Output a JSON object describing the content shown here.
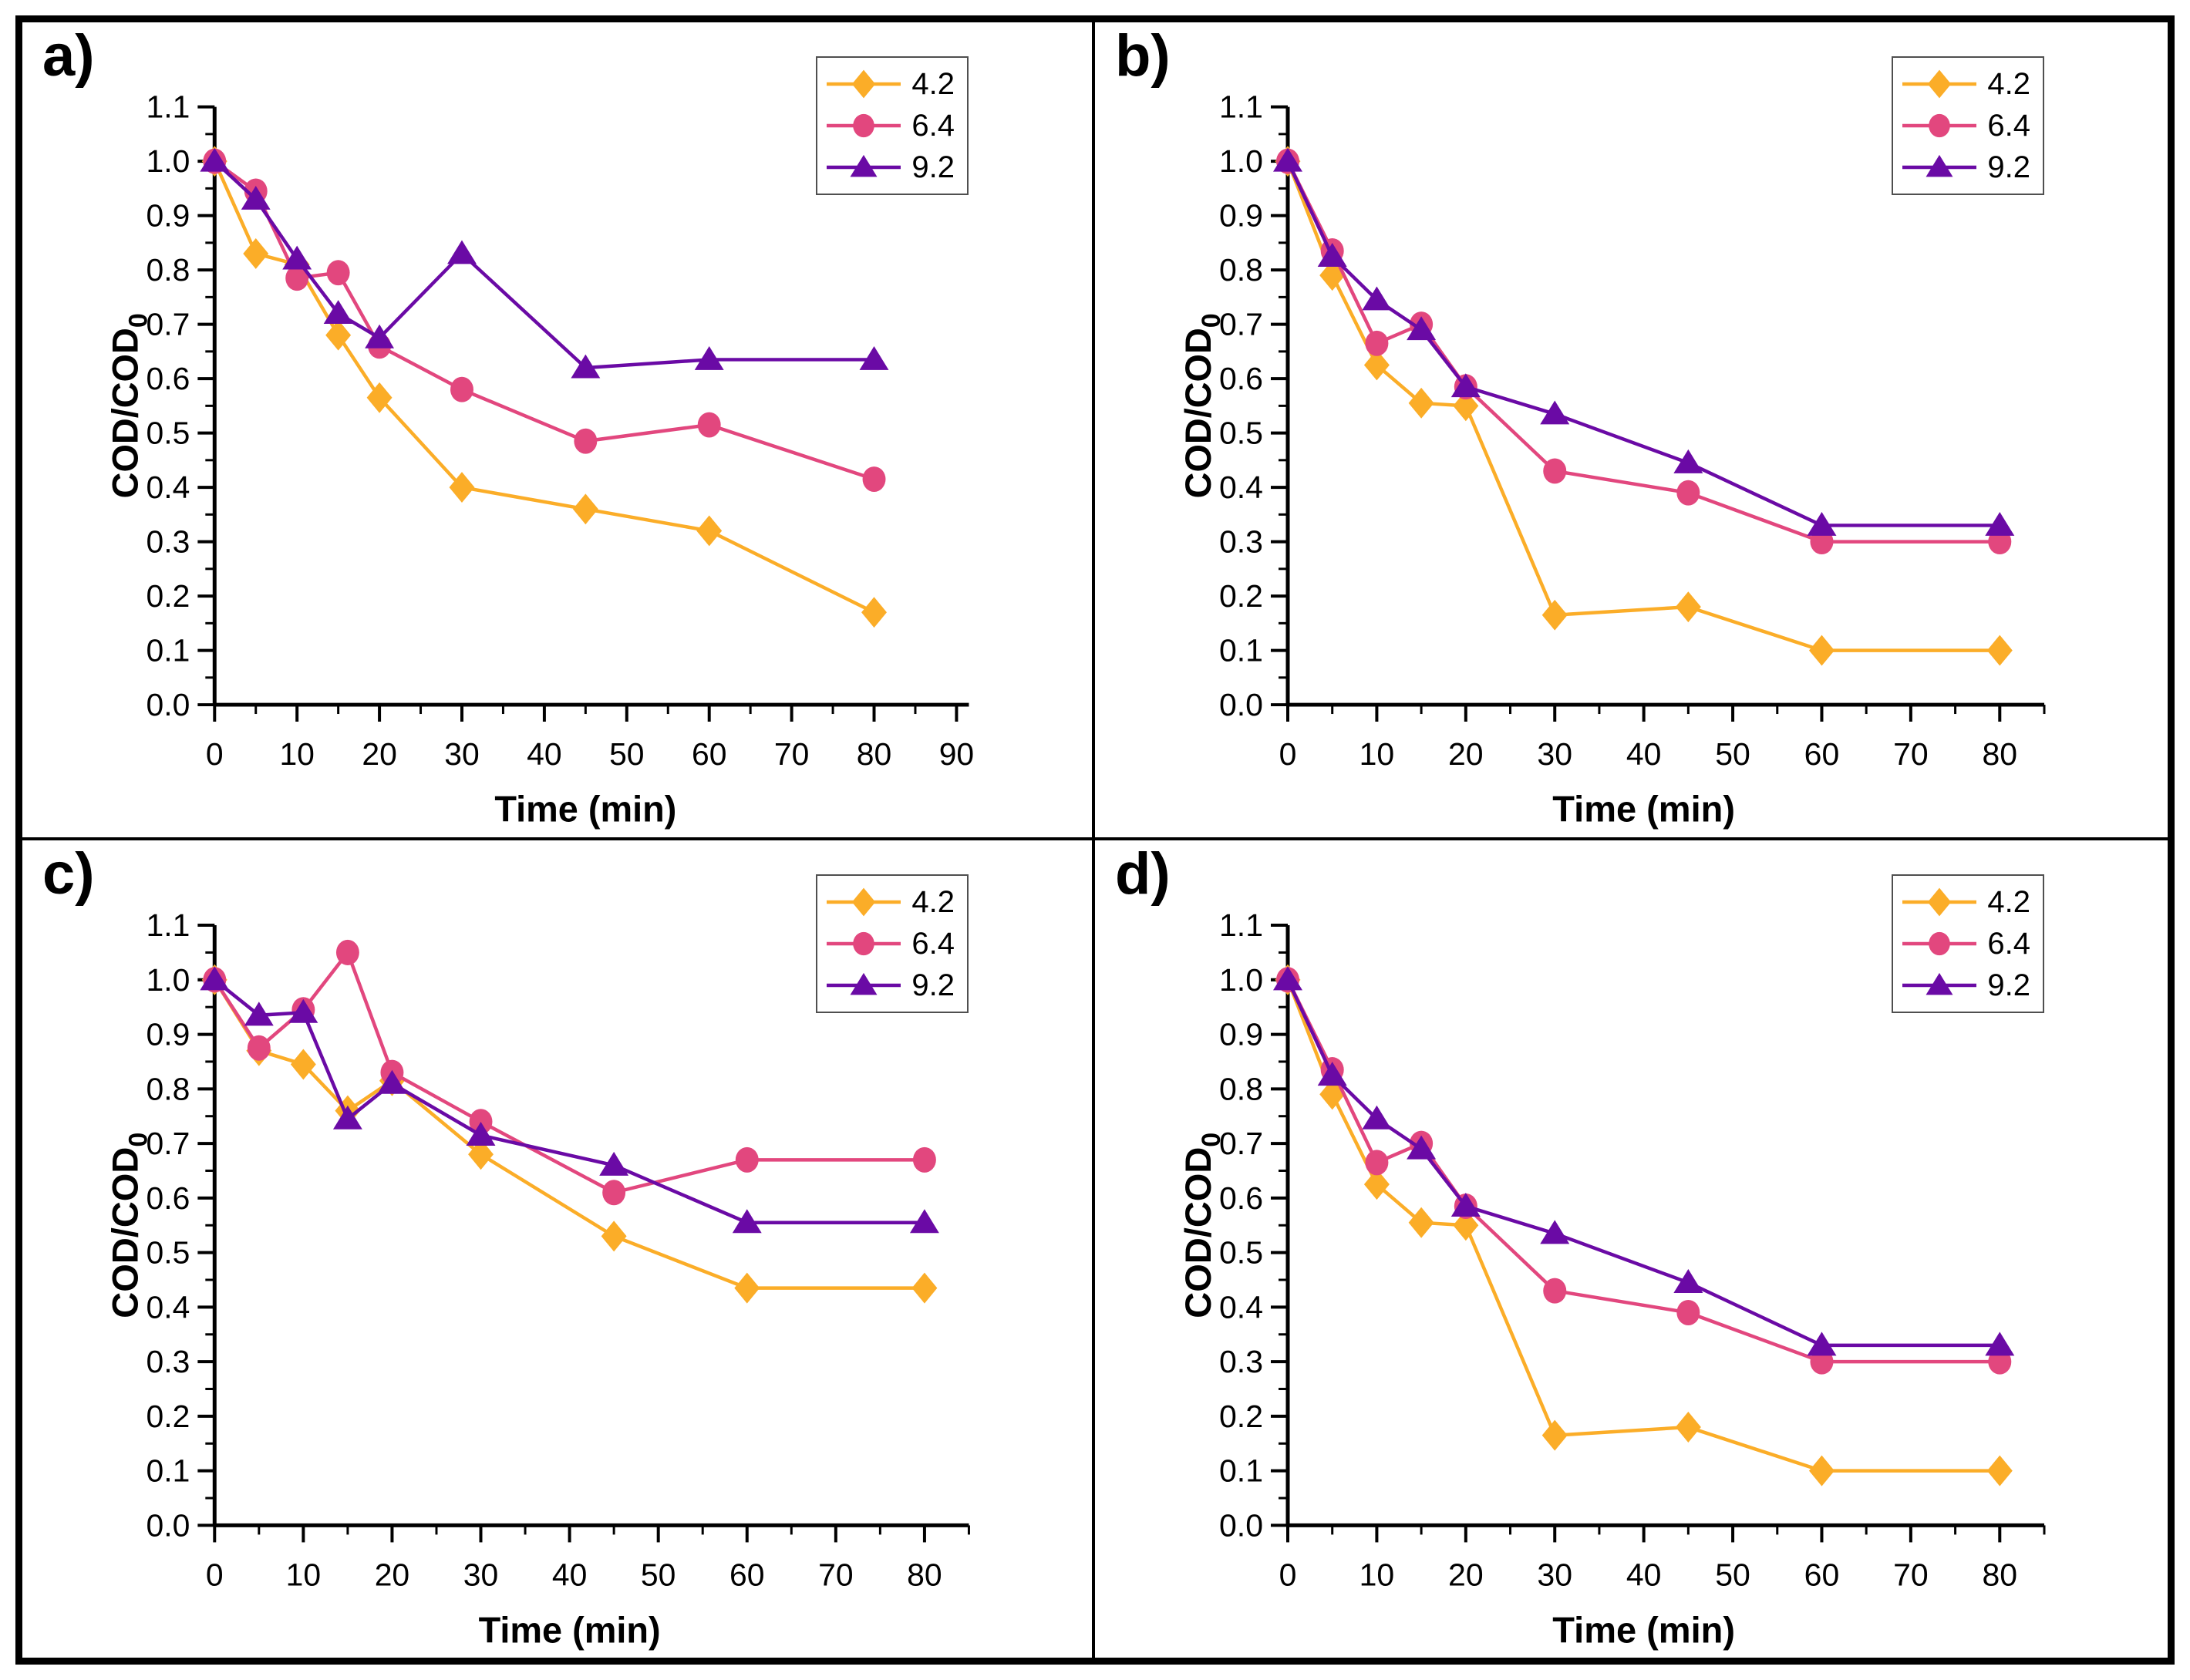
{
  "figure": {
    "background": "#ffffff",
    "border_color": "#000000",
    "axis_color": "#000000",
    "legend_border_color": "#4f4f4f"
  },
  "chart_data": [
    {
      "panel_label": "a)",
      "type": "line",
      "title": "",
      "xlabel": "Time (min)",
      "ylabel": "COD/COD",
      "ylabel_subscript": "0",
      "legend_position": "top-right",
      "grid": false,
      "x": [
        0,
        5,
        10,
        15,
        20,
        30,
        45,
        60,
        80
      ],
      "xlim": [
        0,
        91.5
      ],
      "xtick_max": 90,
      "xtick_step": 10,
      "xminor_step": 5,
      "ylim": [
        0,
        1.1
      ],
      "ytick_step": 0.1,
      "yminor_step": 0.05,
      "series": [
        {
          "name": "4.2",
          "color": "#FBAD28",
          "marker": "diamond",
          "values": [
            1.0,
            0.83,
            0.81,
            0.68,
            0.565,
            0.4,
            0.36,
            0.32,
            0.17
          ]
        },
        {
          "name": "6.4",
          "color": "#E2477E",
          "marker": "circle",
          "values": [
            1.0,
            0.945,
            0.785,
            0.795,
            0.66,
            0.58,
            0.485,
            0.515,
            0.415
          ]
        },
        {
          "name": "9.2",
          "color": "#6A0AA5",
          "marker": "triangle",
          "values": [
            1.0,
            0.93,
            0.82,
            0.72,
            0.675,
            0.83,
            0.62,
            0.635,
            0.635
          ]
        }
      ]
    },
    {
      "panel_label": "b)",
      "type": "line",
      "title": "",
      "xlabel": "Time (min)",
      "ylabel": "COD/COD",
      "ylabel_subscript": "0",
      "legend_position": "top-right",
      "grid": false,
      "x": [
        0,
        5,
        10,
        15,
        20,
        30,
        45,
        60,
        80
      ],
      "xlim": [
        0,
        85
      ],
      "xtick_max": 80,
      "xtick_step": 10,
      "xminor_step": 5,
      "ylim": [
        0,
        1.1
      ],
      "ytick_step": 0.1,
      "yminor_step": 0.05,
      "series": [
        {
          "name": "4.2",
          "color": "#FBAD28",
          "marker": "diamond",
          "values": [
            1.0,
            0.79,
            0.625,
            0.555,
            0.55,
            0.165,
            0.18,
            0.1,
            0.1
          ]
        },
        {
          "name": "6.4",
          "color": "#E2477E",
          "marker": "circle",
          "values": [
            1.0,
            0.835,
            0.665,
            0.7,
            0.585,
            0.43,
            0.39,
            0.3,
            0.3
          ]
        },
        {
          "name": "9.2",
          "color": "#6A0AA5",
          "marker": "triangle",
          "values": [
            1.0,
            0.825,
            0.745,
            0.69,
            0.585,
            0.535,
            0.445,
            0.33,
            0.33
          ]
        }
      ]
    },
    {
      "panel_label": "c)",
      "type": "line",
      "title": "",
      "xlabel": "Time (min)",
      "ylabel": "COD/COD",
      "ylabel_subscript": "0",
      "legend_position": "top-right",
      "grid": false,
      "x": [
        0,
        5,
        10,
        15,
        20,
        30,
        45,
        60,
        80
      ],
      "xlim": [
        0,
        85
      ],
      "xtick_max": 80,
      "xtick_step": 10,
      "xminor_step": 5,
      "ylim": [
        0,
        1.1
      ],
      "ytick_step": 0.1,
      "yminor_step": 0.05,
      "series": [
        {
          "name": "4.2",
          "color": "#FBAD28",
          "marker": "diamond",
          "values": [
            1.0,
            0.87,
            0.845,
            0.76,
            0.815,
            0.68,
            0.53,
            0.435,
            0.435
          ]
        },
        {
          "name": "6.4",
          "color": "#E2477E",
          "marker": "circle",
          "values": [
            1.0,
            0.875,
            0.945,
            1.05,
            0.83,
            0.74,
            0.61,
            0.67,
            0.67
          ]
        },
        {
          "name": "9.2",
          "color": "#6A0AA5",
          "marker": "triangle",
          "values": [
            1.0,
            0.935,
            0.94,
            0.745,
            0.81,
            0.715,
            0.66,
            0.555,
            0.555
          ]
        }
      ]
    },
    {
      "panel_label": "d)",
      "type": "line",
      "title": "",
      "xlabel": "Time (min)",
      "ylabel": "COD/COD",
      "ylabel_subscript": "0",
      "legend_position": "top-right",
      "grid": false,
      "x": [
        0,
        5,
        10,
        15,
        20,
        30,
        45,
        60,
        80
      ],
      "xlim": [
        0,
        85
      ],
      "xtick_max": 80,
      "xtick_step": 10,
      "xminor_step": 5,
      "ylim": [
        0,
        1.1
      ],
      "ytick_step": 0.1,
      "yminor_step": 0.05,
      "series": [
        {
          "name": "4.2",
          "color": "#FBAD28",
          "marker": "diamond",
          "values": [
            1.0,
            0.79,
            0.625,
            0.555,
            0.55,
            0.165,
            0.18,
            0.1,
            0.1
          ]
        },
        {
          "name": "6.4",
          "color": "#E2477E",
          "marker": "circle",
          "values": [
            1.0,
            0.835,
            0.665,
            0.7,
            0.585,
            0.43,
            0.39,
            0.3,
            0.3
          ]
        },
        {
          "name": "9.2",
          "color": "#6A0AA5",
          "marker": "triangle",
          "values": [
            1.0,
            0.825,
            0.745,
            0.69,
            0.585,
            0.535,
            0.445,
            0.33,
            0.33
          ]
        }
      ]
    }
  ]
}
